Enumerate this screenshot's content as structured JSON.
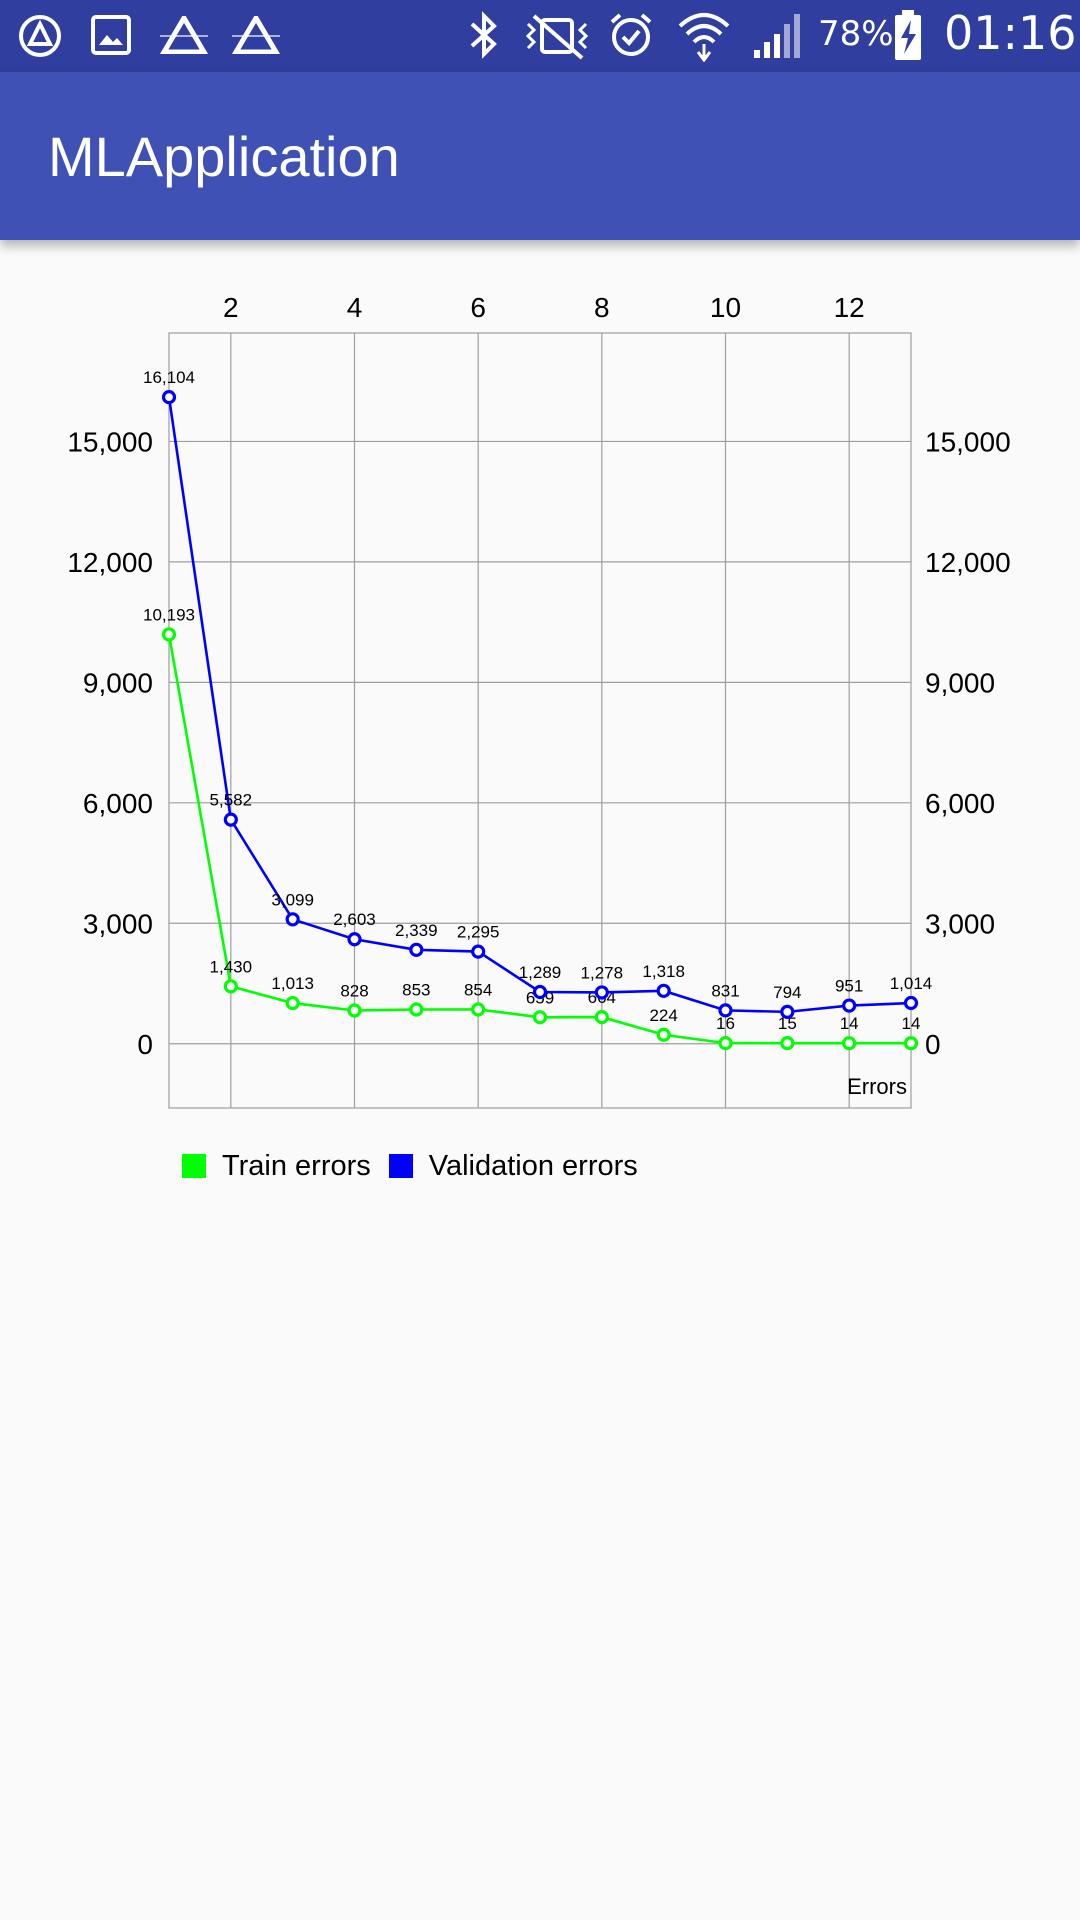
{
  "status_bar": {
    "battery": "78%",
    "time": "01:16",
    "icons": [
      "app-launcher-icon",
      "gallery-icon",
      "alert-triangle-icon",
      "alert-triangle-icon",
      "bluetooth-icon",
      "vibrate-mute-icon",
      "alarm-icon",
      "wifi-icon",
      "signal-icon",
      "battery-charging-icon"
    ]
  },
  "app_bar": {
    "title": "MLApplication"
  },
  "colors": {
    "primary": "#3F51B5",
    "primary_dark": "#303F9F",
    "train": "#00FF00",
    "validation": "#0000FF"
  },
  "chart_data": {
    "type": "line",
    "x": [
      1,
      2,
      3,
      4,
      5,
      6,
      7,
      8,
      9,
      10,
      11,
      12,
      13
    ],
    "x_ticks": [
      2,
      4,
      6,
      8,
      10,
      12
    ],
    "x_axis_position": "top",
    "y_ticks": [
      0,
      3000,
      6000,
      9000,
      12000,
      15000
    ],
    "y_tick_labels": [
      "0",
      "3,000",
      "6,000",
      "9,000",
      "12,000",
      "15,000"
    ],
    "ylim": [
      -1600,
      17700
    ],
    "xlim": [
      1,
      13
    ],
    "grid": true,
    "corner_label": "Errors",
    "legend_position": "bottom-left",
    "series": [
      {
        "name": "Train errors",
        "color": "#00FF00",
        "values": [
          10193,
          1430,
          1013,
          828,
          853,
          854,
          659,
          664,
          224,
          16,
          15,
          14,
          14
        ],
        "labels": [
          "10,193",
          "1,430",
          "1,013",
          "828",
          "853",
          "854",
          "659",
          "664",
          "224",
          "16",
          "15",
          "14",
          "14"
        ]
      },
      {
        "name": "Validation errors",
        "color": "#0000FF",
        "values": [
          16104,
          5582,
          3099,
          2603,
          2339,
          2295,
          1289,
          1278,
          1318,
          831,
          794,
          951,
          1014
        ],
        "labels": [
          "16,104",
          "5,582",
          "3,099",
          "2,603",
          "2,339",
          "2,295",
          "1,289",
          "1,278",
          "1,318",
          "831",
          "794",
          "951",
          "1,014"
        ]
      }
    ]
  }
}
